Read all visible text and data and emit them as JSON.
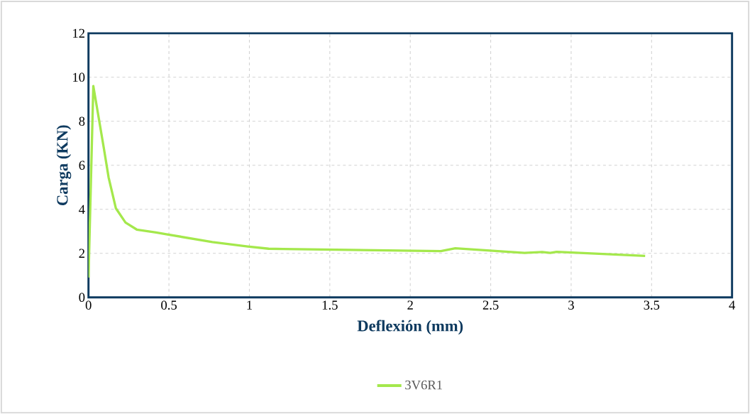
{
  "chart_data": {
    "type": "line",
    "xlabel": "Deflexión (mm)",
    "ylabel": "Carga (KN)",
    "xlim": [
      0,
      4
    ],
    "ylim": [
      0,
      12
    ],
    "xticks": [
      0,
      0.5,
      1,
      1.5,
      2,
      2.5,
      3,
      3.5,
      4
    ],
    "yticks": [
      0,
      2,
      4,
      6,
      8,
      10,
      12
    ],
    "grid": true,
    "legend": "bottom",
    "marker": "none",
    "line_style": "solid",
    "series": [
      {
        "name": "3V6R1",
        "color": "#a4e84c",
        "x": [
          0,
          0.03,
          0.066,
          0.096,
          0.125,
          0.17,
          0.23,
          0.3,
          0.42,
          0.49,
          0.77,
          0.99,
          1.12,
          1.21,
          2.19,
          2.28,
          2.71,
          2.82,
          2.87,
          2.91,
          3.46
        ],
        "values": [
          0.9,
          9.6,
          8.05,
          6.75,
          5.45,
          4.05,
          3.4,
          3.08,
          2.95,
          2.86,
          2.51,
          2.31,
          2.21,
          2.2,
          2.1,
          2.23,
          2.02,
          2.06,
          2.02,
          2.07,
          1.88
        ]
      }
    ]
  }
}
